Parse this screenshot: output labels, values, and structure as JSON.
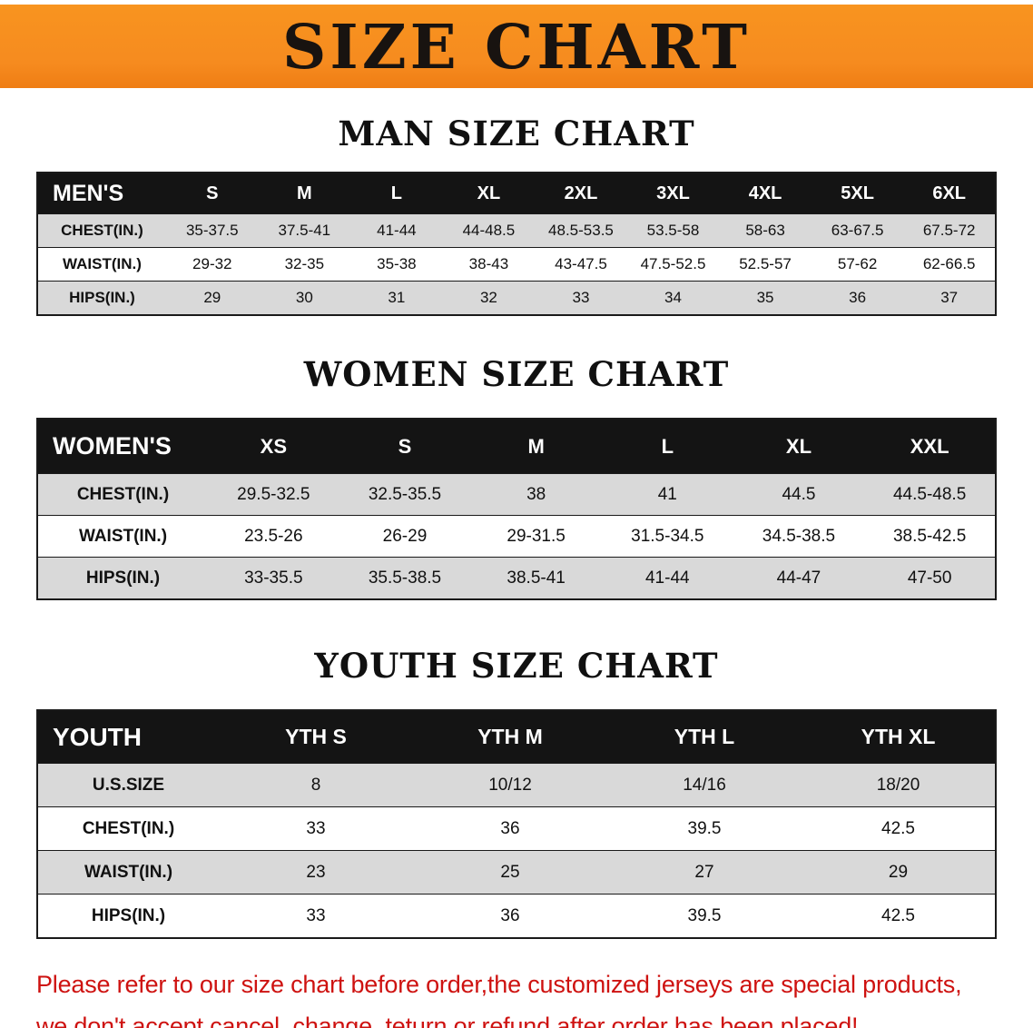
{
  "banner": {
    "title": "SIZE CHART"
  },
  "chart_data": [
    {
      "type": "table",
      "title": "MAN SIZE CHART",
      "columns": [
        "MEN'S",
        "S",
        "M",
        "L",
        "XL",
        "2XL",
        "3XL",
        "4XL",
        "5XL",
        "6XL"
      ],
      "rows": [
        [
          "CHEST(IN.)",
          "35-37.5",
          "37.5-41",
          "41-44",
          "44-48.5",
          "48.5-53.5",
          "53.5-58",
          "58-63",
          "63-67.5",
          "67.5-72"
        ],
        [
          "WAIST(IN.)",
          "29-32",
          "32-35",
          "35-38",
          "38-43",
          "43-47.5",
          "47.5-52.5",
          "52.5-57",
          "57-62",
          "62-66.5"
        ],
        [
          "HIPS(IN.)",
          "29",
          "30",
          "31",
          "32",
          "33",
          "34",
          "35",
          "36",
          "37"
        ]
      ]
    },
    {
      "type": "table",
      "title": "WOMEN SIZE CHART",
      "columns": [
        "WOMEN'S",
        "XS",
        "S",
        "M",
        "L",
        "XL",
        "XXL"
      ],
      "rows": [
        [
          "CHEST(IN.)",
          "29.5-32.5",
          "32.5-35.5",
          "38",
          "41",
          "44.5",
          "44.5-48.5"
        ],
        [
          "WAIST(IN.)",
          "23.5-26",
          "26-29",
          "29-31.5",
          "31.5-34.5",
          "34.5-38.5",
          "38.5-42.5"
        ],
        [
          "HIPS(IN.)",
          "33-35.5",
          "35.5-38.5",
          "38.5-41",
          "41-44",
          "44-47",
          "47-50"
        ]
      ]
    },
    {
      "type": "table",
      "title": "YOUTH SIZE CHART",
      "columns": [
        "YOUTH",
        "YTH S",
        "YTH M",
        "YTH L",
        "YTH XL"
      ],
      "rows": [
        [
          "U.S.SIZE",
          "8",
          "10/12",
          "14/16",
          "18/20"
        ],
        [
          "CHEST(IN.)",
          "33",
          "36",
          "39.5",
          "42.5"
        ],
        [
          "WAIST(IN.)",
          "23",
          "25",
          "27",
          "29"
        ],
        [
          "HIPS(IN.)",
          "33",
          "36",
          "39.5",
          "42.5"
        ]
      ]
    }
  ],
  "footnote": {
    "lines": [
      "Please refer to our size chart before order,the customized jerseys are special products,",
      "we don't accept cancel, change, teturn or refund after order has been placed!"
    ]
  },
  "colors": {
    "banner_bg": "#f68b1f",
    "banner_text": "#181310",
    "table_header_bg": "#141414",
    "stripe_row_bg": "#d9d9d9",
    "footnote_red": "#ce1210"
  }
}
